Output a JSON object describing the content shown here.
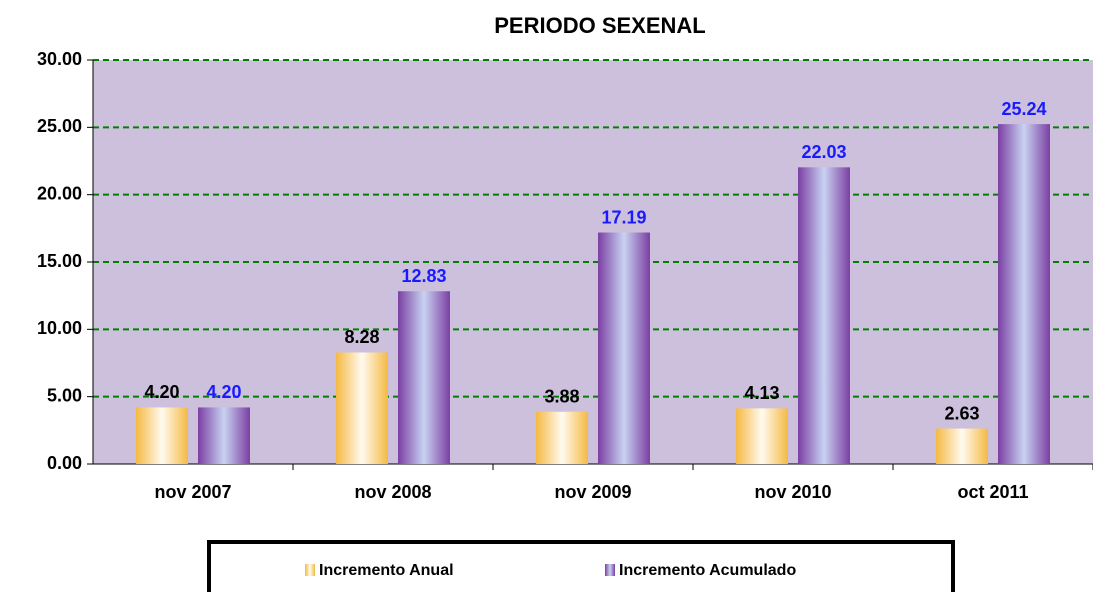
{
  "chart_data": {
    "type": "bar",
    "title": "PERIODO SEXENAL",
    "categories": [
      "nov 2007",
      "nov 2008",
      "nov 2009",
      "nov 2010",
      "oct 2011"
    ],
    "series": [
      {
        "name": "Incremento Anual",
        "color": "#f5b942",
        "label_color": "#000000",
        "values": [
          4.2,
          8.28,
          3.88,
          4.13,
          2.63
        ],
        "value_labels": [
          "4.20",
          "8.28",
          "3.88",
          "4.13",
          "2.63"
        ]
      },
      {
        "name": "Incremento Acumulado",
        "color": "#7b3fa3",
        "label_color": "#1a1aff",
        "values": [
          4.2,
          12.83,
          17.19,
          22.03,
          25.24
        ],
        "value_labels": [
          "4.20",
          "12.83",
          "17.19",
          "22.03",
          "25.24"
        ]
      }
    ],
    "ylim": [
      0,
      30
    ],
    "yticks": [
      {
        "value": 0,
        "label": "0.00"
      },
      {
        "value": 5,
        "label": "5.00"
      },
      {
        "value": 10,
        "label": "10.00"
      },
      {
        "value": 15,
        "label": "15.00"
      },
      {
        "value": 20,
        "label": "20.00"
      },
      {
        "value": 25,
        "label": "25.00"
      },
      {
        "value": 30,
        "label": "30.00"
      }
    ],
    "grid": true,
    "legend": "bottom"
  }
}
